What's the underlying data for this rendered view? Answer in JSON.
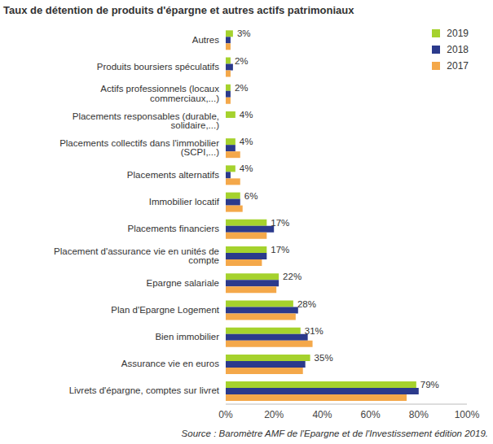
{
  "chart_data": {
    "type": "bar",
    "orientation": "horizontal",
    "title": "Taux de détention de produits d'épargne et autres actifs patrimoniaux",
    "source": "Source : Baromètre AMF de l'Epargne et de l'Investissement édition 2019.",
    "categories": [
      "Autres",
      "Produits boursiers spéculatifs",
      "Actifs professionnels (locaux commerciaux,...)",
      "Placements responsables (durable, solidaire,...)",
      "Placements collectifs dans l'immobilier (SCPI,...)",
      "Placements alternatifs",
      "Immobilier locatif",
      "Placements financiers",
      "Placement d'assurance vie en unités de compte",
      "Epargne salariale",
      "Plan d'Epargne Logement",
      "Bien immobilier",
      "Assurance vie en euros",
      "Livrets d'épargne, comptes sur livret"
    ],
    "series": [
      {
        "name": "2019",
        "color": "#a5d22d",
        "values": [
          3,
          2,
          2,
          4,
          4,
          4,
          6,
          17,
          17,
          22,
          28,
          31,
          35,
          79
        ],
        "value_labels": [
          "3%",
          "2%",
          "2%",
          "4%",
          "4%",
          "4%",
          "6%",
          "17%",
          "17%",
          "22%",
          "28%",
          "31%",
          "35%",
          "79%"
        ],
        "data_labels": true
      },
      {
        "name": "2018",
        "color": "#2b3a8c",
        "values": [
          2,
          3,
          2,
          null,
          4,
          2,
          6,
          20,
          17,
          22,
          30,
          34,
          33,
          80
        ]
      },
      {
        "name": "2017",
        "color": "#f4a84a",
        "values": [
          2,
          2,
          2,
          null,
          6,
          6,
          7,
          17,
          15,
          21,
          29,
          36,
          32,
          75
        ]
      }
    ],
    "xlim": [
      0,
      100
    ],
    "xticks": [
      {
        "value": 0,
        "label": "0%"
      },
      {
        "value": 20,
        "label": "20%"
      },
      {
        "value": 40,
        "label": "40%"
      },
      {
        "value": 60,
        "label": "60%"
      },
      {
        "value": 80,
        "label": "80%"
      },
      {
        "value": 100,
        "label": "100%"
      }
    ],
    "grid": false,
    "legend": "upper right"
  }
}
